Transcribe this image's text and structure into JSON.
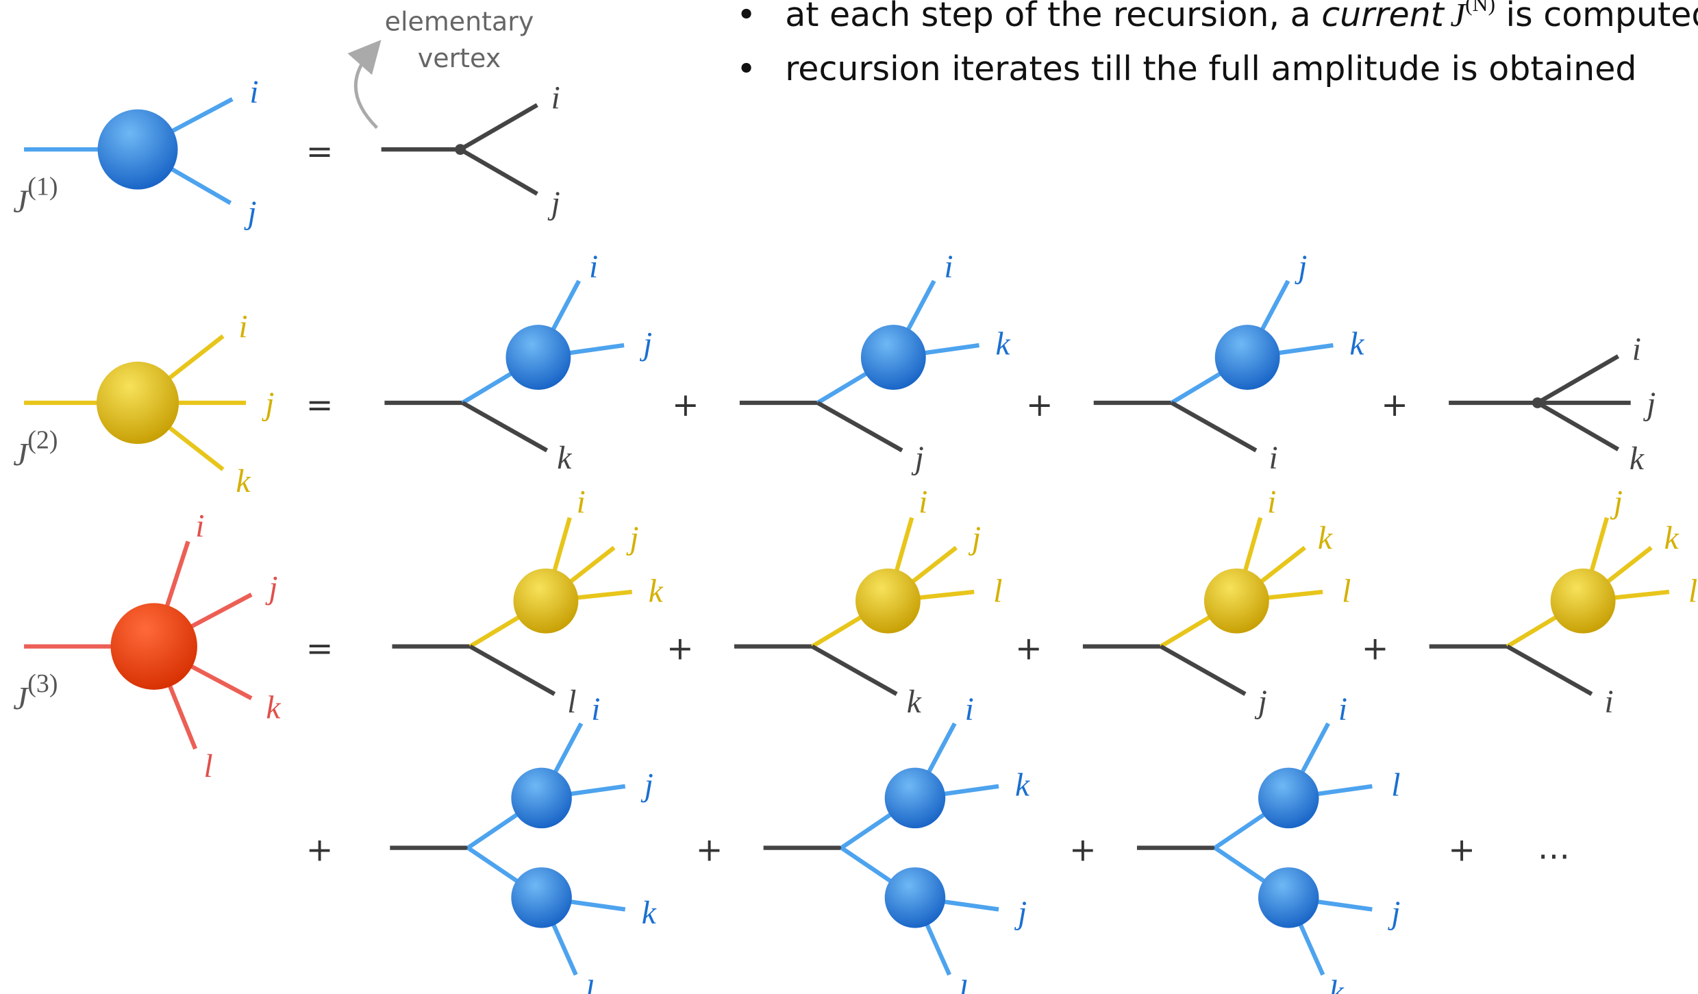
{
  "bullets": [
    {
      "text": "at each step of the recursion, a ",
      "emph": "current",
      "symbol": "J",
      "superscript": "(N)",
      "tail": " is computed"
    },
    {
      "text": "recursion iterates till the full amplitude is obtained"
    }
  ],
  "annotation": [
    "elementary",
    "vertex"
  ],
  "rows": [
    {
      "lhs": {
        "symbol": "J",
        "superscript": "(1)",
        "legs": [
          "i",
          "j"
        ]
      },
      "relation": "=",
      "terms": [
        {
          "vertex": [
            "i",
            "j"
          ]
        }
      ]
    },
    {
      "lhs": {
        "symbol": "J",
        "superscript": "(2)",
        "legs": [
          "i",
          "j",
          "k"
        ]
      },
      "relation": "=",
      "terms": [
        {
          "blob": [
            "i",
            "j"
          ],
          "leg": "k"
        },
        {
          "op": "+",
          "blob": [
            "i",
            "k"
          ],
          "leg": "j"
        },
        {
          "op": "+",
          "blob": [
            "j",
            "k"
          ],
          "leg": "i"
        },
        {
          "op": "+",
          "vertex": [
            "i",
            "j",
            "k"
          ]
        }
      ]
    },
    {
      "lhs": {
        "symbol": "J",
        "superscript": "(3)",
        "legs": [
          "i",
          "j",
          "k",
          "l"
        ]
      },
      "relation": "=",
      "terms": [
        {
          "blob": [
            "i",
            "j",
            "k"
          ],
          "leg": "l"
        },
        {
          "op": "+",
          "blob": [
            "i",
            "j",
            "l"
          ],
          "leg": "k"
        },
        {
          "op": "+",
          "blob": [
            "i",
            "k",
            "l"
          ],
          "leg": "j"
        },
        {
          "op": "+",
          "blob": [
            "j",
            "k",
            "l"
          ],
          "leg": "i"
        }
      ]
    },
    {
      "relation": "+",
      "terms": [
        {
          "blobs": [
            [
              "i",
              "j"
            ],
            [
              "k",
              "l"
            ]
          ]
        },
        {
          "op": "+",
          "blobs": [
            [
              "i",
              "k"
            ],
            [
              "j",
              "l"
            ]
          ]
        },
        {
          "op": "+",
          "blobs": [
            [
              "i",
              "l"
            ],
            [
              "j",
              "k"
            ]
          ]
        },
        {
          "op": "+",
          "ellipsis": "…"
        }
      ]
    }
  ]
}
